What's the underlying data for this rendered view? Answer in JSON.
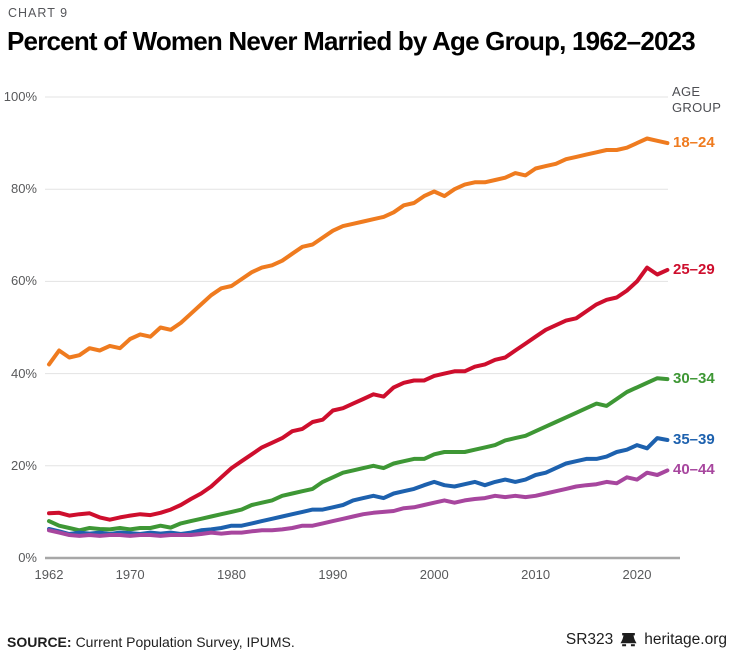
{
  "page": {
    "kicker": "CHART 9",
    "title": "Percent of Women Never Married by Age Group, 1962–2023"
  },
  "footer": {
    "source_label": "SOURCE:",
    "source_text": "Current Population Survey, IPUMS.",
    "report_id": "SR323",
    "site": "heritage.org",
    "bell_icon": "liberty-bell-icon"
  },
  "colors": {
    "background": "#ffffff",
    "grid": "#e3e3e3",
    "axis": "#a7a7a7",
    "tick_text": "#58595b",
    "kicker_text": "#55565a",
    "title_text": "#000000",
    "footer_text": "#1e1e1e"
  },
  "chart_data": {
    "type": "line",
    "title": "Percent of Women Never Married by Age Group, 1962–2023",
    "legend_title": "AGE GROUP",
    "legend_position": "right",
    "xlabel": "",
    "ylabel": "",
    "ylim": [
      0,
      100
    ],
    "yticks": [
      0,
      20,
      40,
      60,
      80,
      100
    ],
    "ytick_suffix": "%",
    "xticks": [
      1962,
      1970,
      1980,
      1990,
      2000,
      2010,
      2020
    ],
    "grid": true,
    "x": [
      1962,
      1963,
      1964,
      1965,
      1966,
      1967,
      1968,
      1969,
      1970,
      1971,
      1972,
      1973,
      1974,
      1975,
      1976,
      1977,
      1978,
      1979,
      1980,
      1981,
      1982,
      1983,
      1984,
      1985,
      1986,
      1987,
      1988,
      1989,
      1990,
      1991,
      1992,
      1993,
      1994,
      1995,
      1996,
      1997,
      1998,
      1999,
      2000,
      2001,
      2002,
      2003,
      2004,
      2005,
      2006,
      2007,
      2008,
      2009,
      2010,
      2011,
      2012,
      2013,
      2014,
      2015,
      2016,
      2017,
      2018,
      2019,
      2020,
      2021,
      2022,
      2023
    ],
    "series": [
      {
        "name": "18–24",
        "color": "#EF7B1F",
        "values": [
          42,
          45,
          43.5,
          44,
          45.5,
          45,
          46,
          45.5,
          47.5,
          48.5,
          48,
          50,
          49.5,
          51,
          53,
          55,
          57,
          58.5,
          59,
          60.5,
          62,
          63,
          63.5,
          64.5,
          66,
          67.5,
          68,
          69.5,
          71,
          72,
          72.5,
          73,
          73.5,
          74,
          75,
          76.5,
          77,
          78.5,
          79.5,
          78.5,
          80,
          81,
          81.5,
          81.5,
          82,
          82.5,
          83.5,
          83,
          84.5,
          85,
          85.5,
          86.5,
          87,
          87.5,
          88,
          88.5,
          88.5,
          89,
          90,
          91,
          90.5,
          90
        ]
      },
      {
        "name": "25–29",
        "color": "#CE0E2D",
        "values": [
          9.7,
          9.8,
          9.2,
          9.5,
          9.7,
          8.8,
          8.3,
          8.8,
          9.2,
          9.5,
          9.3,
          9.8,
          10.5,
          11.5,
          12.8,
          14,
          15.5,
          17.5,
          19.5,
          21,
          22.5,
          24,
          25,
          26,
          27.5,
          28,
          29.5,
          30,
          32,
          32.5,
          33.5,
          34.5,
          35.5,
          35,
          37,
          38,
          38.5,
          38.5,
          39.5,
          40,
          40.5,
          40.5,
          41.5,
          42,
          43,
          43.5,
          45,
          46.5,
          48,
          49.5,
          50.5,
          51.5,
          52,
          53.5,
          55,
          56,
          56.5,
          58,
          60,
          63,
          61.5,
          62.5
        ]
      },
      {
        "name": "30–34",
        "color": "#3E9735",
        "values": [
          8,
          7,
          6.5,
          6,
          6.5,
          6.3,
          6.2,
          6.5,
          6.2,
          6.5,
          6.5,
          7,
          6.6,
          7.5,
          8,
          8.5,
          9,
          9.5,
          10,
          10.5,
          11.5,
          12,
          12.5,
          13.5,
          14,
          14.5,
          15,
          16.5,
          17.5,
          18.5,
          19,
          19.5,
          20,
          19.5,
          20.5,
          21,
          21.5,
          21.5,
          22.5,
          23,
          23,
          23,
          23.5,
          24,
          24.5,
          25.5,
          26,
          26.5,
          27.5,
          28.5,
          29.5,
          30.5,
          31.5,
          32.5,
          33.5,
          33,
          34.5,
          36,
          37,
          38,
          39,
          38.8
        ]
      },
      {
        "name": "35–39",
        "color": "#1D61AE",
        "values": [
          6.3,
          5.8,
          5.2,
          5.5,
          5.3,
          5.5,
          5.2,
          5.5,
          5.4,
          5.2,
          5.5,
          5.3,
          5.5,
          5.2,
          5.5,
          6,
          6.2,
          6.5,
          7,
          7,
          7.5,
          8,
          8.5,
          9,
          9.5,
          10,
          10.5,
          10.5,
          11,
          11.5,
          12.5,
          13,
          13.5,
          13,
          14,
          14.5,
          15,
          15.8,
          16.5,
          15.8,
          15.5,
          16,
          16.5,
          15.8,
          16.5,
          17,
          16.5,
          17,
          18,
          18.5,
          19.5,
          20.5,
          21,
          21.5,
          21.5,
          22,
          23,
          23.5,
          24.5,
          23.8,
          26,
          25.6
        ]
      },
      {
        "name": "40–44",
        "color": "#A7469E",
        "values": [
          6,
          5.5,
          5,
          4.8,
          5,
          4.8,
          5,
          5,
          4.8,
          5,
          5,
          4.8,
          5,
          5,
          5,
          5.2,
          5.5,
          5.3,
          5.5,
          5.5,
          5.8,
          6,
          6,
          6.2,
          6.5,
          7,
          7,
          7.5,
          8,
          8.5,
          9,
          9.5,
          9.8,
          10,
          10.2,
          10.8,
          11,
          11.5,
          12,
          12.5,
          12,
          12.5,
          12.8,
          13,
          13.5,
          13.2,
          13.5,
          13.2,
          13.5,
          14,
          14.5,
          15,
          15.5,
          15.8,
          16,
          16.5,
          16.2,
          17.5,
          17,
          18.5,
          18,
          19
        ]
      }
    ]
  }
}
